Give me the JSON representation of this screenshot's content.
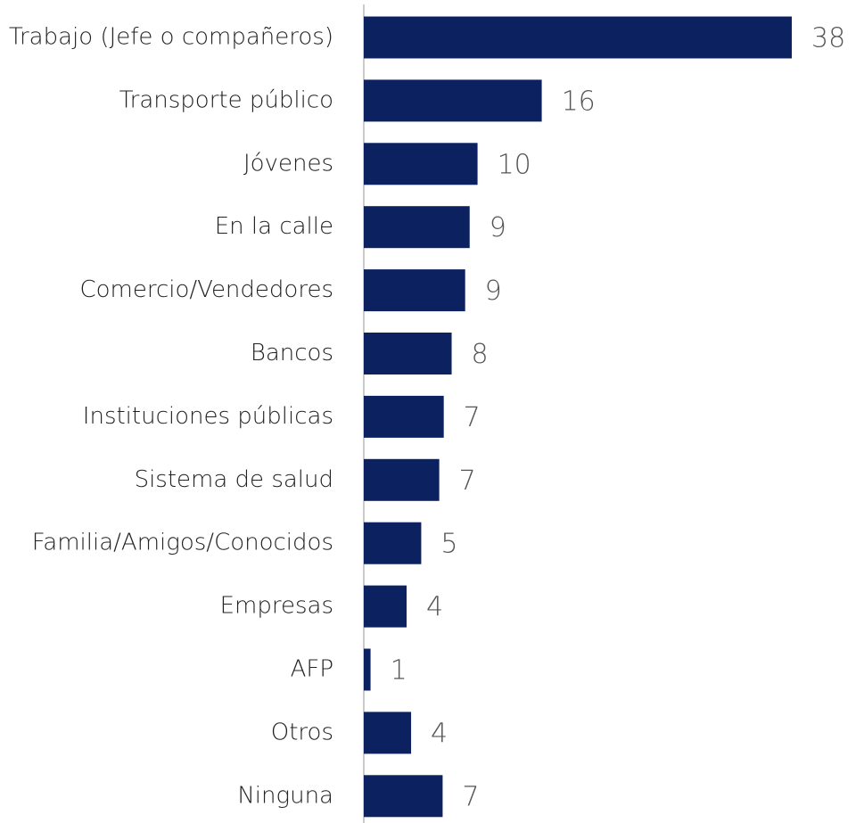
{
  "chart_data": {
    "type": "bar",
    "orientation": "horizontal",
    "categories": [
      "Trabajo (Jefe o compañeros)",
      "Transporte público",
      "Jóvenes",
      "En la calle",
      "Comercio/Vendedores",
      "Bancos",
      "Instituciones públicas",
      "Sistema de salud",
      "Familia/Amigos/Conocidos",
      "Empresas",
      "AFP",
      "Otros",
      "Ninguna"
    ],
    "values": [
      38,
      15.8,
      10.1,
      9.4,
      9.0,
      7.8,
      7.1,
      6.7,
      5.1,
      3.8,
      0.6,
      4.2,
      7.0
    ],
    "value_labels": [
      "38",
      "16",
      "10",
      "9",
      "9",
      "8",
      "7",
      "7",
      "5",
      "4",
      "1",
      "4",
      "7"
    ],
    "color": "#0c2260"
  }
}
